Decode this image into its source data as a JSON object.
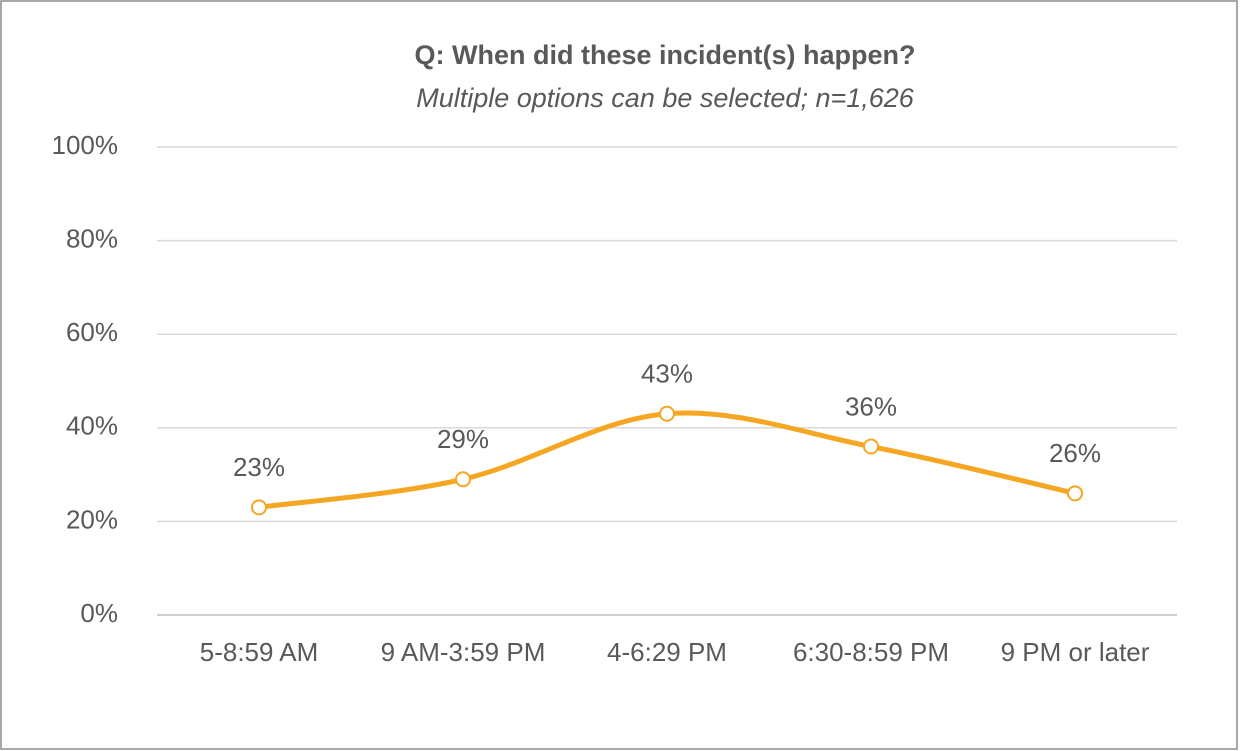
{
  "chart_data": {
    "type": "line",
    "title": "Q: When did these incident(s) happen?",
    "subtitle": "Multiple options can be selected; n=1,626",
    "categories": [
      "5-8:59 AM",
      "9 AM-3:59 PM",
      "4-6:29 PM",
      "6:30-8:59 PM",
      "9 PM or later"
    ],
    "series": [
      {
        "color": "#f5a623",
        "values": [
          23,
          29,
          43,
          36,
          26
        ],
        "value_labels": [
          "23%",
          "29%",
          "43%",
          "36%",
          "26%"
        ]
      }
    ],
    "ylim": [
      0,
      100
    ],
    "yticks": [
      {
        "value": 0,
        "label": "0%"
      },
      {
        "value": 20,
        "label": "20%"
      },
      {
        "value": 40,
        "label": "40%"
      },
      {
        "value": 60,
        "label": "60%"
      },
      {
        "value": 80,
        "label": "80%"
      },
      {
        "value": 100,
        "label": "100%"
      }
    ],
    "grid": true,
    "smooth": true
  }
}
